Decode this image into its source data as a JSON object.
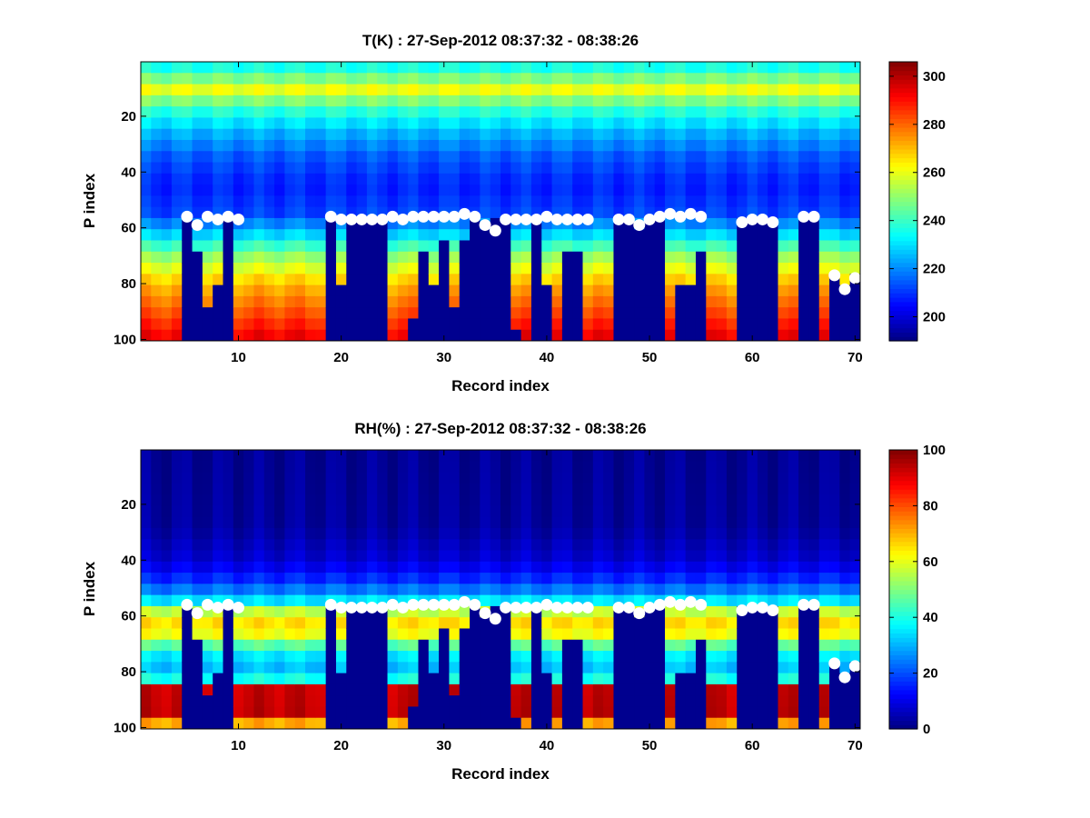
{
  "chart_data": [
    {
      "type": "heatmap",
      "title": "T(K) : 27-Sep-2012 08:37:32 - 08:38:26",
      "xlabel": "Record index",
      "ylabel": "P index",
      "xlim": [
        0.5,
        70.5
      ],
      "ylim": [
        0.5,
        100.5
      ],
      "y_reversed": true,
      "xticks": [
        10,
        20,
        30,
        40,
        50,
        60,
        70
      ],
      "yticks": [
        20,
        40,
        60,
        80,
        100
      ],
      "colorbar": {
        "min": 190,
        "max": 306,
        "ticks": [
          200,
          220,
          240,
          260,
          280,
          300
        ],
        "colormap": "jet"
      },
      "masked_color": "#00008f",
      "surface_min": 190,
      "profile": {
        "p": [
          1,
          8,
          11,
          16,
          25,
          35,
          45,
          55,
          62,
          70,
          80,
          90,
          98,
          100
        ],
        "v": [
          232,
          252,
          262,
          242,
          226,
          214,
          208,
          212,
          228,
          250,
          270,
          282,
          292,
          294
        ]
      }
    },
    {
      "type": "heatmap",
      "title": "RH(%) : 27-Sep-2012 08:37:32 - 08:38:26",
      "xlabel": "Record index",
      "ylabel": "P index",
      "xlim": [
        0.5,
        70.5
      ],
      "ylim": [
        0.5,
        100.5
      ],
      "y_reversed": true,
      "xticks": [
        10,
        20,
        30,
        40,
        50,
        60,
        70
      ],
      "yticks": [
        20,
        40,
        60,
        80,
        100
      ],
      "colorbar": {
        "min": 0,
        "max": 100,
        "ticks": [
          0,
          20,
          40,
          60,
          80,
          100
        ],
        "colormap": "jet"
      },
      "masked_color": "#00008f",
      "surface_min": 0,
      "profile": {
        "p": [
          1,
          28,
          40,
          48,
          54,
          58,
          62,
          68,
          72,
          80,
          84,
          86,
          98,
          100
        ],
        "v": [
          2,
          3,
          8,
          18,
          32,
          55,
          66,
          60,
          38,
          30,
          45,
          93,
          94,
          2
        ]
      }
    }
  ],
  "records": {
    "x": [
      1,
      2,
      3,
      4,
      5,
      6,
      7,
      8,
      9,
      10,
      11,
      12,
      13,
      14,
      15,
      16,
      17,
      18,
      19,
      20,
      21,
      22,
      23,
      24,
      25,
      26,
      27,
      28,
      29,
      30,
      31,
      32,
      33,
      34,
      35,
      36,
      37,
      38,
      39,
      40,
      41,
      42,
      43,
      44,
      45,
      46,
      47,
      48,
      49,
      50,
      51,
      52,
      53,
      54,
      55,
      56,
      57,
      58,
      59,
      60,
      61,
      62,
      63,
      64,
      65,
      66,
      67,
      68,
      69,
      70
    ],
    "surface_p_index": [
      99,
      99,
      99,
      99,
      56,
      67,
      88,
      82,
      56,
      99,
      99,
      99,
      99,
      99,
      99,
      99,
      99,
      99,
      56,
      81,
      57,
      57,
      57,
      57,
      99,
      99,
      91,
      67,
      82,
      66,
      87,
      65,
      58,
      61,
      57,
      57,
      97,
      99,
      57,
      81,
      99,
      69,
      67,
      99,
      99,
      99,
      57,
      57,
      59,
      57,
      57,
      99,
      82,
      81,
      70,
      99,
      99,
      99,
      58,
      57,
      57,
      58,
      99,
      99,
      56,
      56,
      99,
      77,
      82,
      78
    ],
    "marker_p_index": [
      null,
      null,
      null,
      null,
      56,
      59,
      56,
      57,
      56,
      57,
      null,
      null,
      null,
      null,
      null,
      null,
      null,
      null,
      56,
      57,
      57,
      57,
      57,
      57,
      56,
      57,
      56,
      56,
      56,
      56,
      56,
      55,
      56,
      59,
      61,
      57,
      57,
      57,
      57,
      56,
      57,
      57,
      57,
      57,
      null,
      null,
      57,
      57,
      59,
      57,
      56,
      55,
      56,
      55,
      56,
      null,
      null,
      null,
      58,
      57,
      57,
      58,
      null,
      null,
      56,
      56,
      null,
      77,
      82,
      78
    ]
  }
}
